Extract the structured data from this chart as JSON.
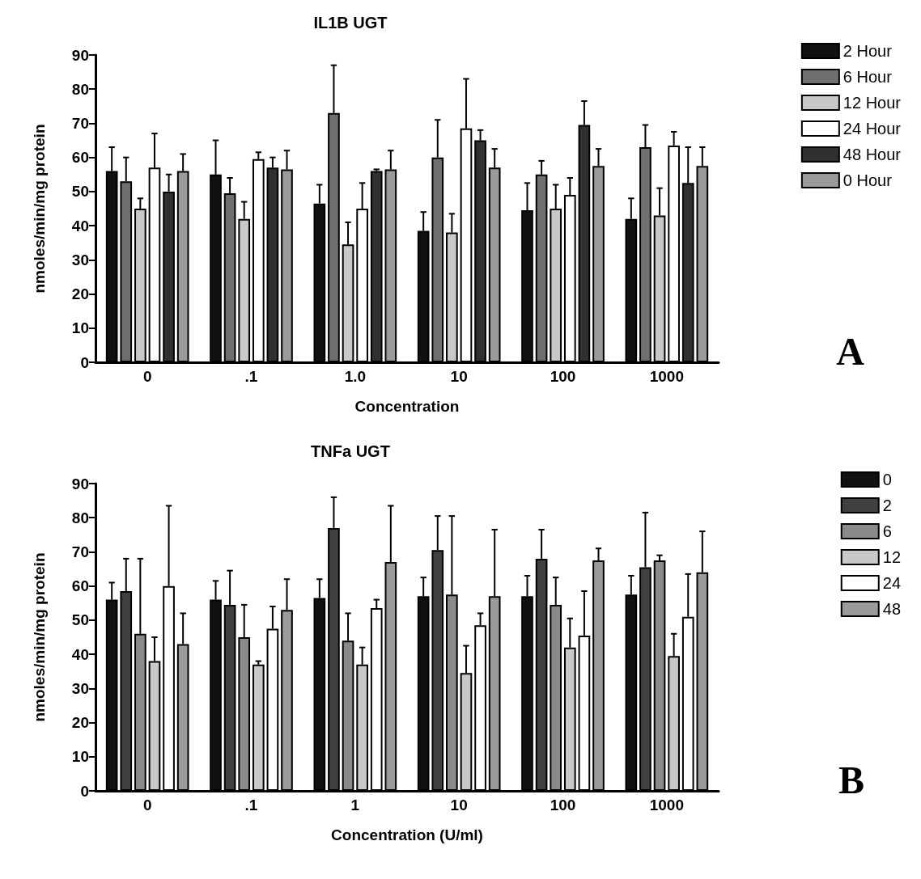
{
  "chart_data": [
    {
      "type": "bar",
      "title": "IL1B UGT",
      "xlabel": "Concentration",
      "ylabel": "nmoles/min/mg protein",
      "categories": [
        "0",
        ".1",
        "1.0",
        "10",
        "100",
        "1000"
      ],
      "ylim": [
        0,
        90
      ],
      "yticks": [
        0,
        10,
        20,
        30,
        40,
        50,
        60,
        70,
        80,
        90
      ],
      "grid": false,
      "legend": "right",
      "annotations": [
        "A"
      ],
      "series": [
        {
          "name": "2 Hour",
          "color": "#111111",
          "values": [
            56,
            55,
            46.5,
            38.5,
            44.5,
            42
          ],
          "errors": [
            [
              56,
              63
            ],
            [
              55,
              65
            ],
            [
              46.5,
              52
            ],
            [
              38.5,
              44
            ],
            [
              44.5,
              52.5
            ],
            [
              42,
              48
            ]
          ]
        },
        {
          "name": "6 Hour",
          "color": "#707070",
          "values": [
            53,
            49.5,
            73,
            60,
            55,
            63
          ],
          "errors": [
            [
              53,
              60
            ],
            [
              49.5,
              54
            ],
            [
              73,
              87
            ],
            [
              60,
              71
            ],
            [
              55,
              59
            ],
            [
              63,
              69.5
            ]
          ]
        },
        {
          "name": "12 Hour",
          "color": "#c8c8c8",
          "values": [
            45,
            42,
            34.5,
            38,
            45,
            43
          ],
          "errors": [
            [
              45,
              48
            ],
            [
              42,
              47
            ],
            [
              34.5,
              41
            ],
            [
              38,
              43.5
            ],
            [
              45,
              52
            ],
            [
              43,
              51
            ]
          ]
        },
        {
          "name": "24 Hour",
          "color": "#ffffff",
          "values": [
            57,
            59.5,
            45,
            68.5,
            49,
            63.5
          ],
          "errors": [
            [
              57,
              67
            ],
            [
              59.5,
              61.5
            ],
            [
              45,
              52.5
            ],
            [
              68.5,
              83
            ],
            [
              49,
              54
            ],
            [
              63.5,
              67.5
            ]
          ]
        },
        {
          "name": "48 Hour",
          "color": "#303030",
          "values": [
            50,
            57,
            56,
            65,
            69.5,
            52.5
          ],
          "errors": [
            [
              50,
              55
            ],
            [
              57,
              60
            ],
            [
              56,
              56.5
            ],
            [
              65,
              68
            ],
            [
              69.5,
              76.5
            ],
            [
              52.5,
              63
            ]
          ]
        },
        {
          "name": "0 Hour",
          "color": "#9a9a9a",
          "values": [
            56,
            56.5,
            56.5,
            57,
            57.5,
            57.5
          ],
          "errors": [
            [
              56,
              61
            ],
            [
              56.5,
              62
            ],
            [
              56.5,
              62
            ],
            [
              57,
              62.5
            ],
            [
              57.5,
              62.5
            ],
            [
              57.5,
              63
            ]
          ]
        }
      ]
    },
    {
      "type": "bar",
      "title": "TNFa UGT",
      "xlabel": "Concentration (U/ml)",
      "ylabel": "nmoles/min/mg protein",
      "categories": [
        "0",
        ".1",
        "1",
        "10",
        "100",
        "1000"
      ],
      "ylim": [
        0,
        90
      ],
      "yticks": [
        0,
        10,
        20,
        30,
        40,
        50,
        60,
        70,
        80,
        90
      ],
      "grid": false,
      "legend": "right",
      "annotations": [
        "B"
      ],
      "series": [
        {
          "name": "0",
          "color": "#111111",
          "values": [
            56,
            56,
            56.5,
            57,
            57,
            57.5
          ],
          "errors": [
            [
              56,
              61
            ],
            [
              56,
              61.5
            ],
            [
              56.5,
              62
            ],
            [
              57,
              62.5
            ],
            [
              57,
              63
            ],
            [
              57.5,
              63
            ]
          ]
        },
        {
          "name": "2",
          "color": "#404040",
          "values": [
            58.5,
            54.5,
            77,
            70.5,
            68,
            65.5
          ],
          "errors": [
            [
              58.5,
              68
            ],
            [
              54.5,
              64.5
            ],
            [
              77,
              86
            ],
            [
              70.5,
              80.5
            ],
            [
              68,
              76.5
            ],
            [
              65.5,
              81.5
            ]
          ]
        },
        {
          "name": "6",
          "color": "#8a8a8a",
          "values": [
            46,
            45,
            44,
            57.5,
            54.5,
            67.5
          ],
          "errors": [
            [
              46,
              68
            ],
            [
              45,
              54.5
            ],
            [
              44,
              52
            ],
            [
              57.5,
              80.5
            ],
            [
              54.5,
              62.5
            ],
            [
              67.5,
              69
            ]
          ]
        },
        {
          "name": "12",
          "color": "#c8c8c8",
          "values": [
            38,
            37,
            37,
            34.5,
            42,
            39.5
          ],
          "errors": [
            [
              38,
              45
            ],
            [
              37,
              38
            ],
            [
              37,
              42
            ],
            [
              34.5,
              42.5
            ],
            [
              42,
              50.5
            ],
            [
              39.5,
              46
            ]
          ]
        },
        {
          "name": "24",
          "color": "#ffffff",
          "values": [
            60,
            47.5,
            53.5,
            48.5,
            45.5,
            51
          ],
          "errors": [
            [
              60,
              83.5
            ],
            [
              47.5,
              54
            ],
            [
              53.5,
              56
            ],
            [
              48.5,
              52
            ],
            [
              45.5,
              58.5
            ],
            [
              51,
              63.5
            ]
          ]
        },
        {
          "name": "48",
          "color": "#9a9a9a",
          "values": [
            43,
            53,
            67,
            57,
            67.5,
            64
          ],
          "errors": [
            [
              43,
              52
            ],
            [
              53,
              62
            ],
            [
              67,
              83.5
            ],
            [
              57,
              76.5
            ],
            [
              67.5,
              71
            ],
            [
              64,
              76
            ]
          ]
        }
      ]
    }
  ]
}
